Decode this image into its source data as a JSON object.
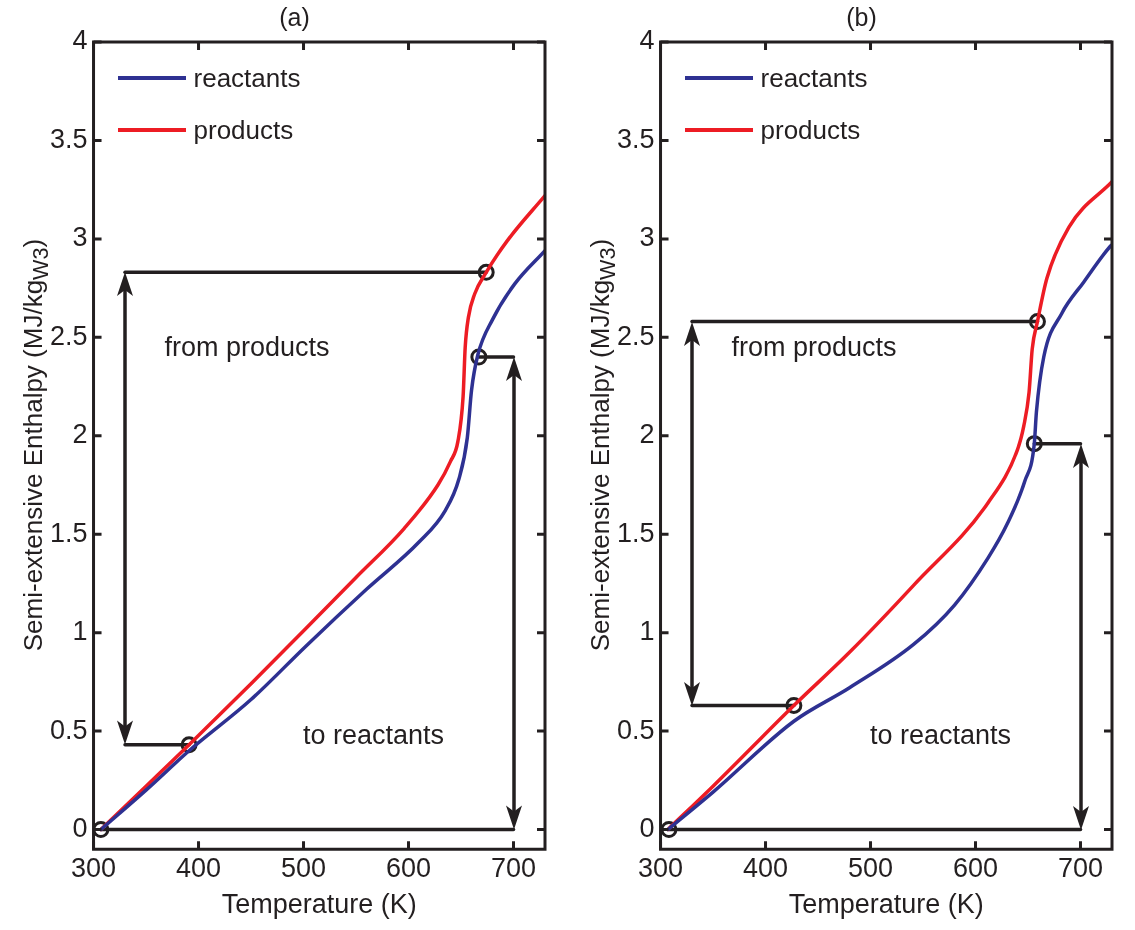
{
  "chart_data": [
    {
      "type": "line",
      "title": "(a)",
      "xlabel": "Temperature (K)",
      "ylabel": "Semi-extensive Enthalpy (MJ/kg$_{W3}$)",
      "xlim": [
        300,
        730
      ],
      "xticks": [
        300,
        400,
        500,
        600,
        700
      ],
      "ylim": [
        -0.1,
        4
      ],
      "yticks": [
        0,
        0.5,
        1,
        1.5,
        2,
        2.5,
        3,
        3.5,
        4
      ],
      "grid": false,
      "legend": "top left",
      "marker": "none",
      "series": [
        {
          "name": "reactants",
          "color": "#2e3192",
          "x": [
            307,
            350,
            391,
            450,
            502,
            560,
            610,
            635,
            648,
            656,
            660,
            666,
            680,
            701,
            730
          ],
          "values": [
            0,
            0.2,
            0.4,
            0.66,
            0.93,
            1.22,
            1.46,
            1.62,
            1.78,
            1.99,
            2.23,
            2.41,
            2.59,
            2.77,
            2.94
          ]
        },
        {
          "name": "products",
          "color": "#ed1c24",
          "x": [
            307,
            350,
            391,
            450,
            502,
            550,
            596,
            628,
            640,
            647,
            652,
            654,
            657,
            663,
            674,
            694,
            730
          ],
          "values": [
            0,
            0.22,
            0.43,
            0.74,
            1.02,
            1.28,
            1.53,
            1.75,
            1.87,
            1.97,
            2.2,
            2.45,
            2.6,
            2.72,
            2.83,
            2.99,
            3.22
          ]
        },
        {
          "color": "#231f20",
          "x": [
            674,
            330
          ],
          "values": [
            2.83,
            2.83
          ]
        },
        {
          "color": "#231f20",
          "x": [
            330,
            391
          ],
          "values": [
            0.43,
            0.43
          ]
        },
        {
          "color": "#231f20",
          "x": [
            667,
            700
          ],
          "values": [
            2.4,
            2.4
          ]
        },
        {
          "color": "#231f20",
          "x": [
            700,
            307
          ],
          "values": [
            0,
            0
          ]
        },
        {
          "type": "scatter",
          "marker": "circle",
          "color": "#231f20",
          "x": [
            307,
            391,
            667,
            674
          ],
          "values": [
            0,
            0.43,
            2.4,
            2.83
          ]
        }
      ],
      "annotations": [
        "from products",
        "to reactants"
      ]
    },
    {
      "type": "line",
      "title": "(b)",
      "xlabel": "Temperature (K)",
      "ylabel": "Semi-extensive Enthalpy (MJ/kg$_{W3}$)",
      "xlim": [
        300,
        730
      ],
      "xticks": [
        300,
        400,
        500,
        600,
        700
      ],
      "ylim": [
        -0.1,
        4
      ],
      "yticks": [
        0,
        0.5,
        1,
        1.5,
        2,
        2.5,
        3,
        3.5,
        4
      ],
      "grid": false,
      "legend": "top left",
      "marker": "none",
      "series": [
        {
          "name": "reactants",
          "color": "#2e3192",
          "x": [
            307,
            350,
            427,
            480,
            541,
            580,
            612,
            630,
            647,
            656,
            658,
            665,
            682,
            703,
            728,
            730
          ],
          "values": [
            0,
            0.19,
            0.55,
            0.72,
            0.94,
            1.14,
            1.38,
            1.55,
            1.77,
            1.96,
            2.12,
            2.4,
            2.62,
            2.78,
            2.96,
            2.97
          ]
        },
        {
          "name": "products",
          "color": "#ed1c24",
          "x": [
            307,
            350,
            427,
            480,
            541,
            612,
            640,
            646,
            651,
            654,
            659,
            668,
            689,
            730
          ],
          "values": [
            0,
            0.22,
            0.63,
            0.9,
            1.24,
            1.66,
            1.93,
            2.05,
            2.22,
            2.44,
            2.58,
            2.8,
            3.06,
            3.29
          ]
        },
        {
          "color": "#231f20",
          "x": [
            659,
            330
          ],
          "values": [
            2.58,
            2.58
          ]
        },
        {
          "color": "#231f20",
          "x": [
            330,
            427
          ],
          "values": [
            0.63,
            0.63
          ]
        },
        {
          "color": "#231f20",
          "x": [
            656,
            700
          ],
          "values": [
            1.96,
            1.96
          ]
        },
        {
          "color": "#231f20",
          "x": [
            700,
            308
          ],
          "values": [
            0,
            0
          ]
        },
        {
          "type": "scatter",
          "marker": "circle",
          "color": "#231f20",
          "x": [
            308,
            427,
            656,
            659
          ],
          "values": [
            0,
            0.63,
            1.96,
            2.58
          ]
        }
      ],
      "annotations": [
        "from products",
        "to reactants"
      ]
    }
  ]
}
